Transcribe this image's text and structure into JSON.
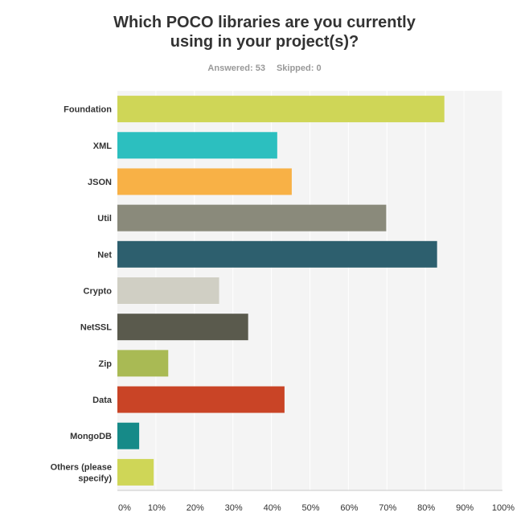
{
  "survey": {
    "title_line1": "Which POCO libraries are you currently",
    "title_line2": "using in your project(s)?",
    "answered": "Answered: 53",
    "skipped": "Skipped: 0"
  },
  "chart_data": {
    "type": "bar",
    "orientation": "horizontal",
    "title": "Which POCO libraries are you currently using in your project(s)?",
    "categories": [
      "Foundation",
      "XML",
      "JSON",
      "Util",
      "Net",
      "Crypto",
      "NetSSL",
      "Zip",
      "Data",
      "MongoDB",
      "Others (please specify)"
    ],
    "category_lines": [
      [
        "Foundation"
      ],
      [
        "XML"
      ],
      [
        "JSON"
      ],
      [
        "Util"
      ],
      [
        "Net"
      ],
      [
        "Crypto"
      ],
      [
        "NetSSL"
      ],
      [
        "Zip"
      ],
      [
        "Data"
      ],
      [
        "MongoDB"
      ],
      [
        "Others (please",
        "specify)"
      ]
    ],
    "values": [
      84.91,
      41.51,
      45.28,
      69.81,
      83.02,
      26.42,
      33.96,
      13.21,
      43.4,
      5.66,
      9.43
    ],
    "colors": [
      "#cfd657",
      "#2cbfbf",
      "#f8b146",
      "#8a8a7b",
      "#2d5f6e",
      "#d0cfc4",
      "#5a5a4d",
      "#a9ba54",
      "#c94426",
      "#168a88",
      "#cfd657"
    ],
    "xlim": [
      0,
      100
    ],
    "xticks": [
      0,
      10,
      20,
      30,
      40,
      50,
      60,
      70,
      80,
      90,
      100
    ],
    "xtick_labels": [
      "0%",
      "10%",
      "20%",
      "30%",
      "40%",
      "50%",
      "60%",
      "70%",
      "80%",
      "90%",
      "100%"
    ],
    "xlabel": "",
    "ylabel": "",
    "grid": true,
    "background": "#f4f4f4"
  }
}
